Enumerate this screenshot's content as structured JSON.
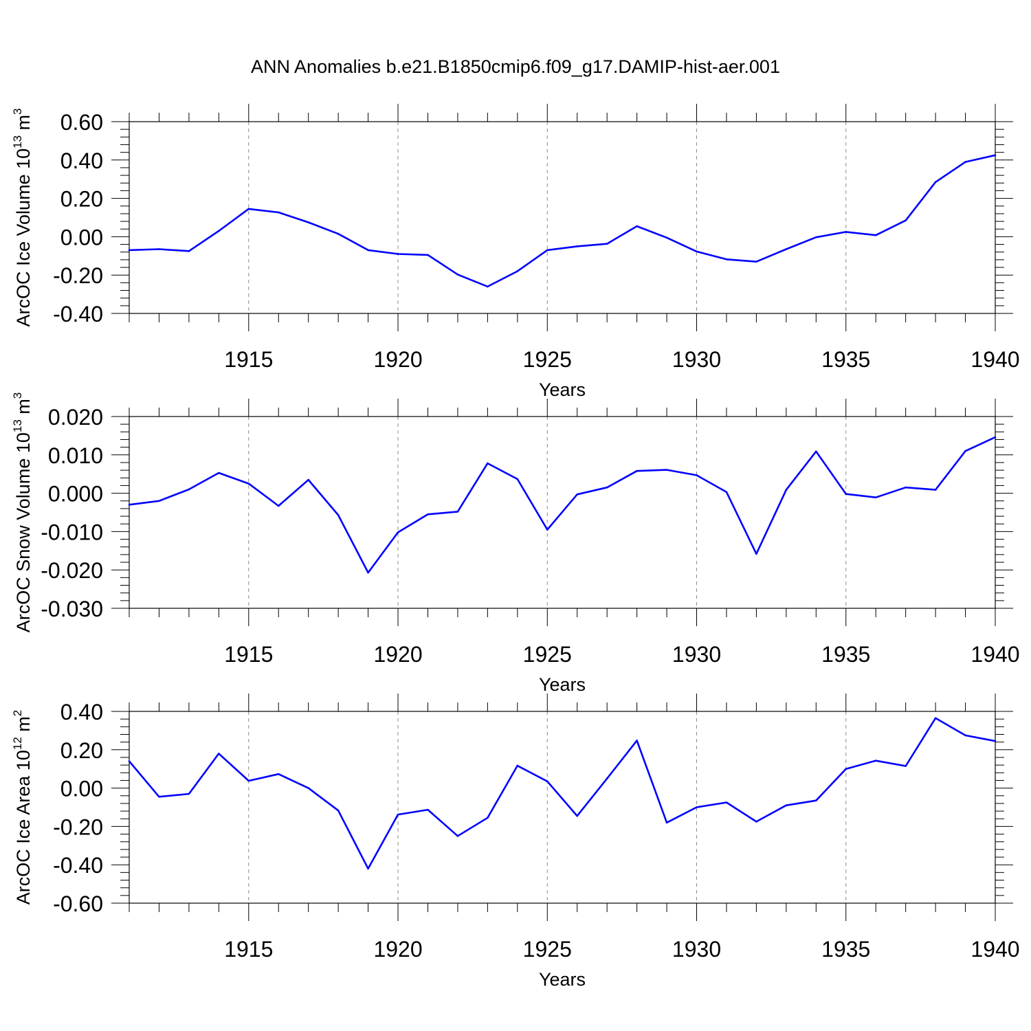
{
  "title": "ANN Anomalies b.e21.B1850cmip6.f09_g17.DAMIP-hist-aer.001",
  "chart_data": [
    {
      "type": "line",
      "ylabel": "ArcOC Ice Volume 10",
      "ylabel_sup": "13",
      "ylabel_unit": " m",
      "ylabel_unit_sup": "3",
      "xlabel": "Years",
      "xlim": [
        1911,
        1940
      ],
      "ylim": [
        -0.4,
        0.6
      ],
      "yticks": [
        -0.4,
        -0.2,
        0.0,
        0.2,
        0.4,
        0.6
      ],
      "ytick_labels": [
        "-0.40",
        "-0.20",
        "0.00",
        "0.20",
        "0.40",
        "0.60"
      ],
      "xticks": [
        1915,
        1920,
        1925,
        1930,
        1935,
        1940
      ],
      "xtick_labels": [
        "1915",
        "1920",
        "1925",
        "1930",
        "1935",
        "1940"
      ],
      "grid": "vertical dashed at major x ticks",
      "color": "#0000ff",
      "x": [
        1911,
        1912,
        1913,
        1914,
        1915,
        1916,
        1917,
        1918,
        1919,
        1920,
        1921,
        1922,
        1923,
        1924,
        1925,
        1926,
        1927,
        1928,
        1929,
        1930,
        1931,
        1932,
        1933,
        1934,
        1935,
        1936,
        1937,
        1938,
        1939,
        1940
      ],
      "values": [
        -0.07,
        -0.065,
        -0.075,
        0.03,
        0.145,
        0.127,
        0.075,
        0.015,
        -0.07,
        -0.09,
        -0.095,
        -0.197,
        -0.26,
        -0.18,
        -0.07,
        -0.05,
        -0.037,
        0.055,
        -0.005,
        -0.077,
        -0.118,
        -0.13,
        -0.065,
        -0.003,
        0.025,
        0.008,
        0.085,
        0.285,
        0.39,
        0.425
      ]
    },
    {
      "type": "line",
      "ylabel": "ArcOC Snow Volume 10",
      "ylabel_sup": "13",
      "ylabel_unit": " m",
      "ylabel_unit_sup": "3",
      "xlabel": "Years",
      "xlim": [
        1911,
        1940
      ],
      "ylim": [
        -0.03,
        0.02
      ],
      "yticks": [
        -0.03,
        -0.02,
        -0.01,
        0.0,
        0.01,
        0.02
      ],
      "ytick_labels": [
        "-0.030",
        "-0.020",
        "-0.010",
        "0.000",
        "0.010",
        "0.020"
      ],
      "xticks": [
        1915,
        1920,
        1925,
        1930,
        1935,
        1940
      ],
      "xtick_labels": [
        "1915",
        "1920",
        "1925",
        "1930",
        "1935",
        "1940"
      ],
      "grid": "vertical dashed at major x ticks",
      "color": "#0000ff",
      "x": [
        1911,
        1912,
        1913,
        1914,
        1915,
        1916,
        1917,
        1918,
        1919,
        1920,
        1921,
        1922,
        1923,
        1924,
        1925,
        1926,
        1927,
        1928,
        1929,
        1930,
        1931,
        1932,
        1933,
        1934,
        1935,
        1936,
        1937,
        1938,
        1939,
        1940
      ],
      "values": [
        -0.003,
        -0.002,
        0.001,
        0.0053,
        0.0025,
        -0.0033,
        0.0035,
        -0.0057,
        -0.0207,
        -0.0102,
        -0.0055,
        -0.0048,
        0.0078,
        0.0037,
        -0.0095,
        -0.0003,
        0.0015,
        0.0058,
        0.0061,
        0.0047,
        0.0003,
        -0.0158,
        0.0009,
        0.0109,
        -0.0002,
        -0.0011,
        0.0015,
        0.0009,
        0.011,
        0.0146
      ]
    },
    {
      "type": "line",
      "ylabel": "ArcOC Ice Area 10",
      "ylabel_sup": "12",
      "ylabel_unit": " m",
      "ylabel_unit_sup": "2",
      "xlabel": "Years",
      "xlim": [
        1911,
        1940
      ],
      "ylim": [
        -0.6,
        0.4
      ],
      "yticks": [
        -0.6,
        -0.4,
        -0.2,
        0.0,
        0.2,
        0.4
      ],
      "ytick_labels": [
        "-0.60",
        "-0.40",
        "-0.20",
        "0.00",
        "0.20",
        "0.40"
      ],
      "xticks": [
        1915,
        1920,
        1925,
        1930,
        1935,
        1940
      ],
      "xtick_labels": [
        "1915",
        "1920",
        "1925",
        "1930",
        "1935",
        "1940"
      ],
      "grid": "vertical dashed at major x ticks",
      "color": "#0000ff",
      "x": [
        1911,
        1912,
        1913,
        1914,
        1915,
        1916,
        1917,
        1918,
        1919,
        1920,
        1921,
        1922,
        1923,
        1924,
        1925,
        1926,
        1927,
        1928,
        1929,
        1930,
        1931,
        1932,
        1933,
        1934,
        1935,
        1936,
        1937,
        1938,
        1939,
        1940
      ],
      "values": [
        0.14,
        -0.045,
        -0.03,
        0.18,
        0.038,
        0.073,
        0.0,
        -0.117,
        -0.42,
        -0.138,
        -0.113,
        -0.25,
        -0.155,
        0.117,
        0.035,
        -0.145,
        0.05,
        0.248,
        -0.18,
        -0.1,
        -0.075,
        -0.175,
        -0.09,
        -0.065,
        0.1,
        0.143,
        0.115,
        0.365,
        0.275,
        0.245
      ]
    }
  ]
}
